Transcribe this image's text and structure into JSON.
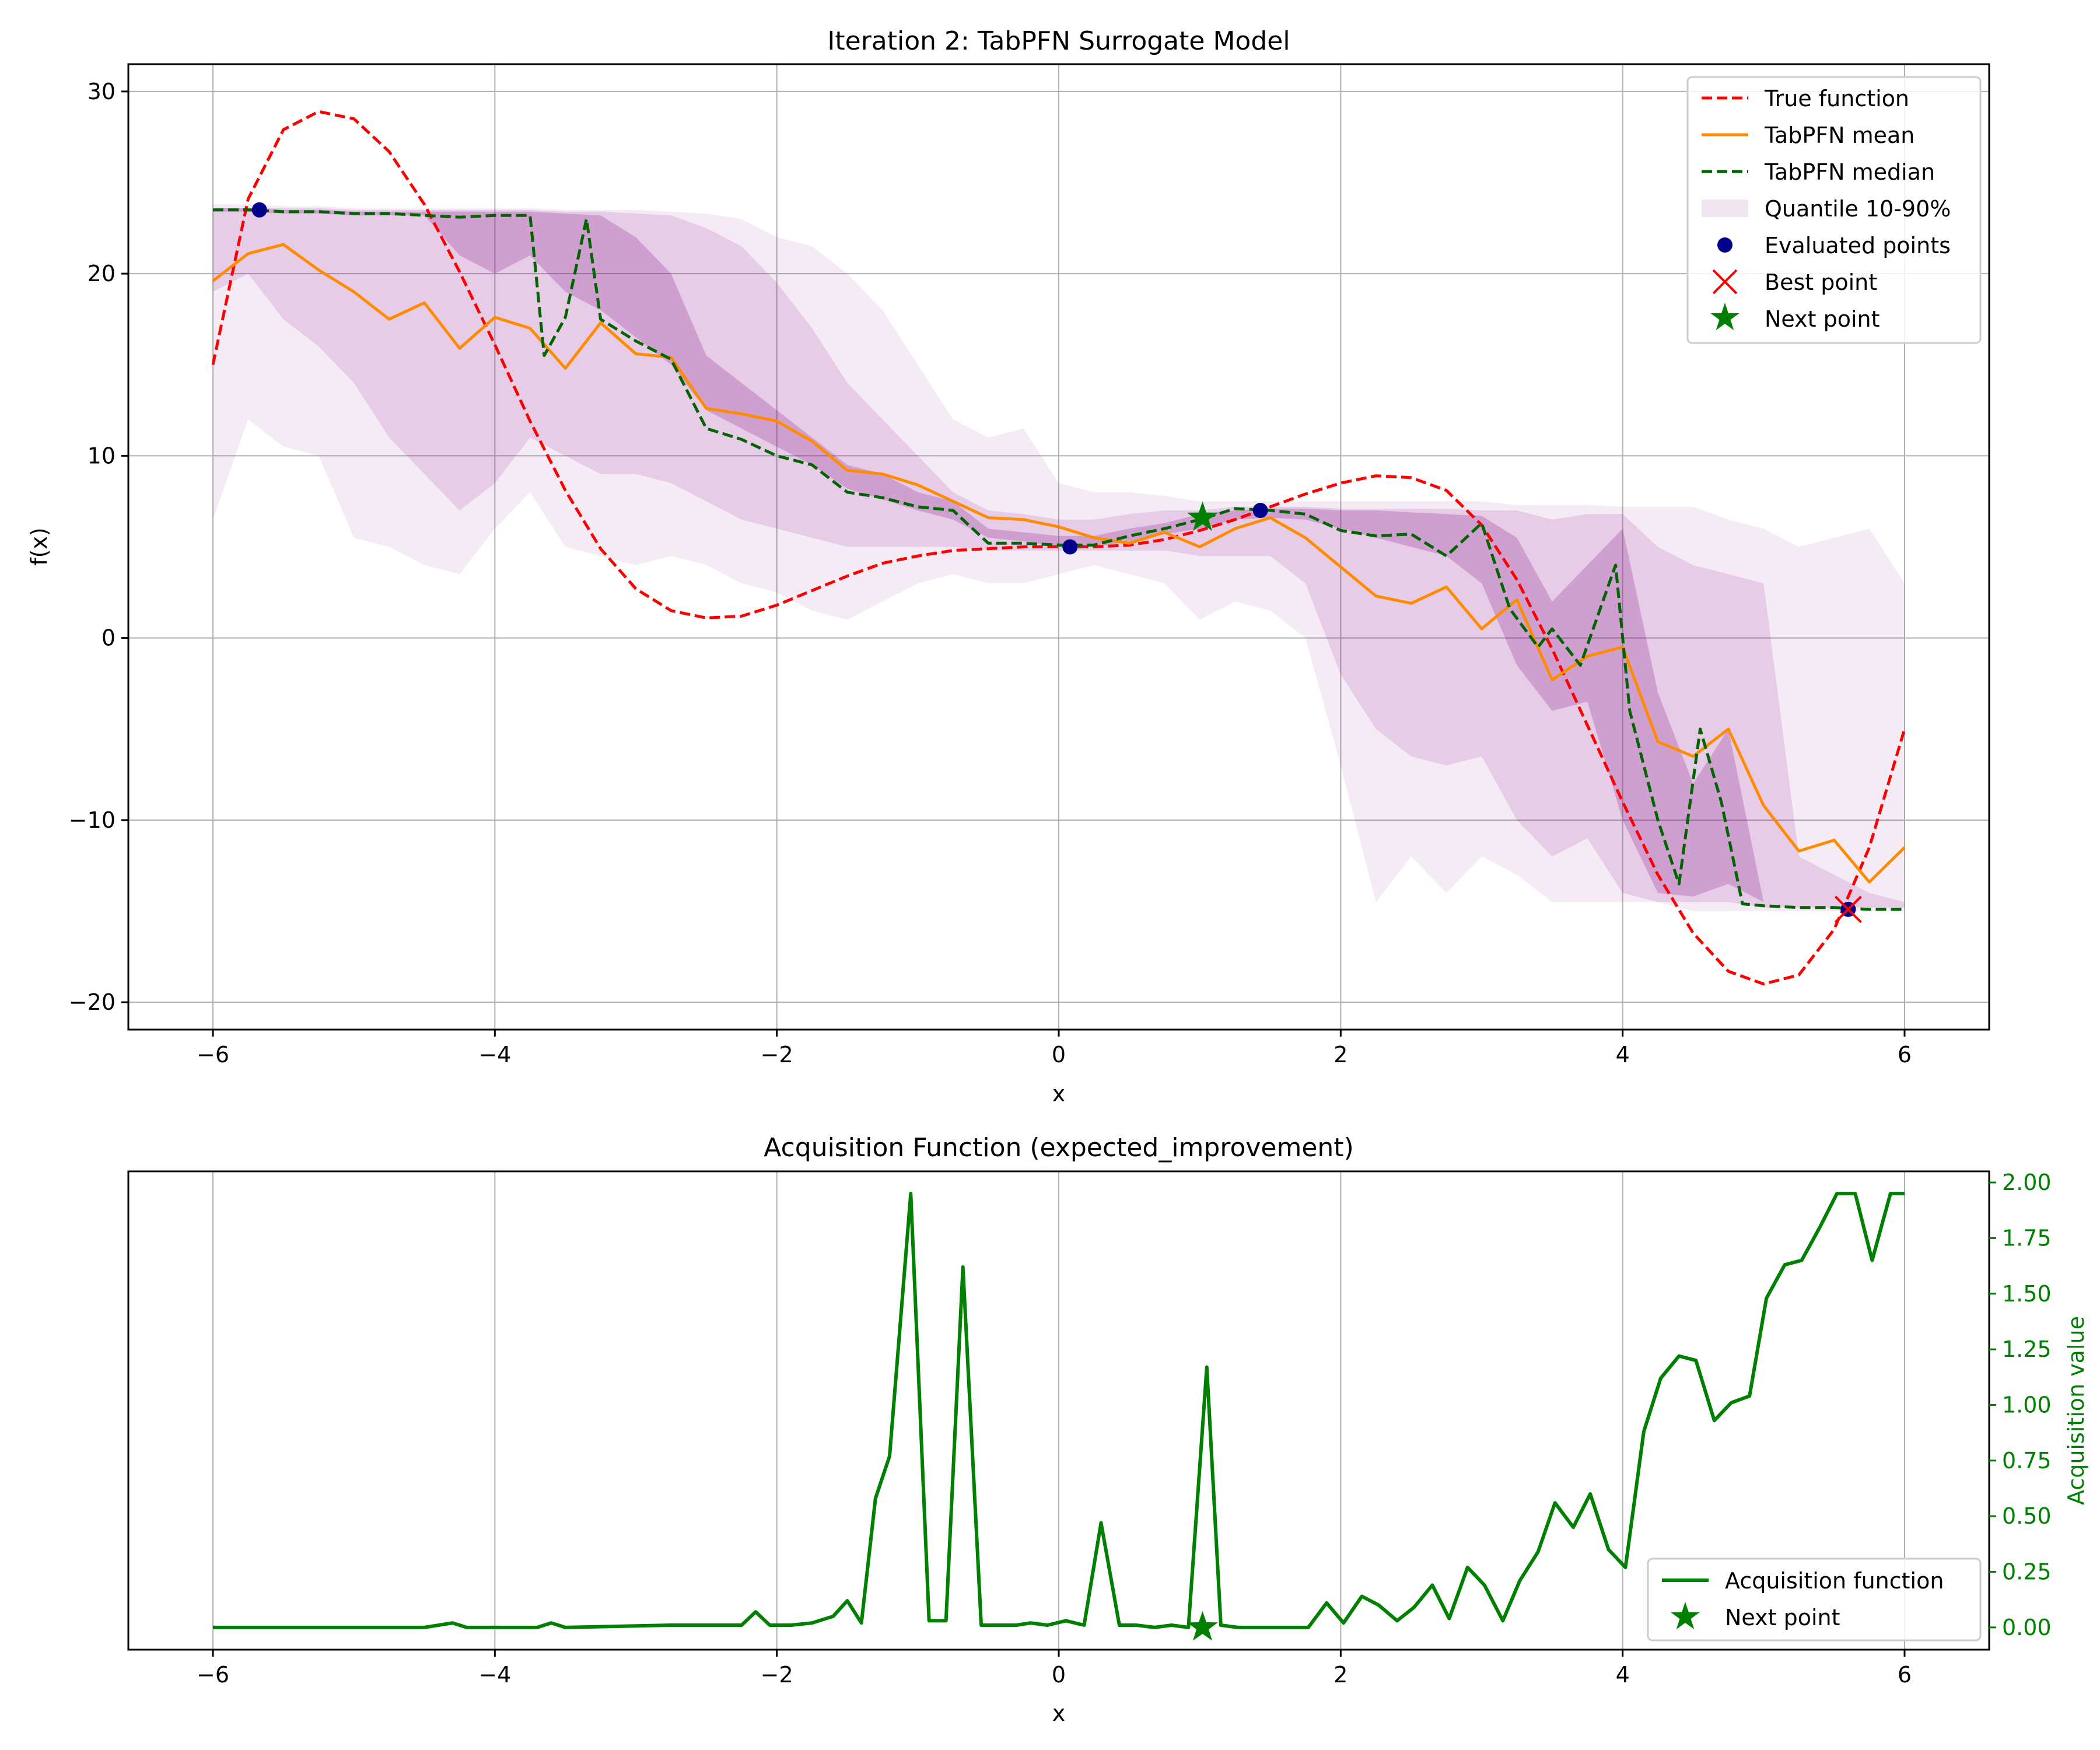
{
  "chart_data": [
    {
      "type": "line",
      "title": "Iteration 2: TabPFN Surrogate Model",
      "xlabel": "x",
      "ylabel": "f(x)",
      "xlim": [
        -6.6,
        6.6
      ],
      "ylim": [
        -21.5,
        31.5
      ],
      "xticks": [
        -6,
        -4,
        -2,
        0,
        2,
        4,
        6
      ],
      "yticks": [
        -20,
        -10,
        0,
        10,
        20,
        30
      ],
      "grid": true,
      "legend_position": "top-right",
      "legend": [
        "True function",
        "TabPFN mean",
        "TabPFN median",
        "Quantile 10-90%",
        "Evaluated points",
        "Best point",
        "Next point"
      ],
      "colors": {
        "true_function": "#ff0000",
        "mean": "#ff8c00",
        "median": "#006400",
        "quantile": "#800080",
        "evaluated": "#00008b",
        "best": "#ff0000",
        "next": "#008000"
      },
      "series": [
        {
          "name": "True function",
          "style": "dashed",
          "x": [
            -6.0,
            -5.75,
            -5.5,
            -5.25,
            -5.0,
            -4.75,
            -4.5,
            -4.25,
            -4.0,
            -3.75,
            -3.5,
            -3.25,
            -3.0,
            -2.75,
            -2.5,
            -2.25,
            -2.0,
            -1.75,
            -1.5,
            -1.25,
            -1.0,
            -0.75,
            -0.5,
            -0.25,
            0.0,
            0.25,
            0.5,
            0.75,
            1.0,
            1.25,
            1.5,
            1.75,
            2.0,
            2.25,
            2.5,
            2.75,
            3.0,
            3.25,
            3.5,
            3.75,
            4.0,
            4.25,
            4.5,
            4.75,
            5.0,
            5.25,
            5.5,
            5.75,
            6.0
          ],
          "values": [
            15.0,
            24.1,
            27.9,
            28.9,
            28.5,
            26.7,
            23.8,
            20.1,
            16.1,
            11.9,
            8.1,
            4.9,
            2.7,
            1.5,
            1.1,
            1.2,
            1.8,
            2.6,
            3.4,
            4.1,
            4.5,
            4.8,
            4.9,
            5.0,
            5.0,
            5.0,
            5.1,
            5.4,
            5.9,
            6.5,
            7.2,
            7.9,
            8.5,
            8.9,
            8.8,
            8.1,
            6.2,
            3.2,
            -0.6,
            -4.8,
            -9.0,
            -13.0,
            -16.2,
            -18.3,
            -19.0,
            -18.5,
            -16.0,
            -11.5,
            -5.0
          ]
        },
        {
          "name": "TabPFN mean",
          "style": "solid",
          "x": [
            -6.0,
            -5.75,
            -5.5,
            -5.25,
            -5.0,
            -4.75,
            -4.5,
            -4.25,
            -4.0,
            -3.75,
            -3.5,
            -3.25,
            -3.0,
            -2.75,
            -2.5,
            -2.25,
            -2.0,
            -1.75,
            -1.5,
            -1.25,
            -1.0,
            -0.75,
            -0.5,
            -0.25,
            0.0,
            0.25,
            0.5,
            0.75,
            1.0,
            1.25,
            1.5,
            1.75,
            2.0,
            2.25,
            2.5,
            2.75,
            3.0,
            3.25,
            3.5,
            3.75,
            4.0,
            4.25,
            4.5,
            4.75,
            5.0,
            5.25,
            5.5,
            5.75,
            6.0
          ],
          "values": [
            19.6,
            21.1,
            21.6,
            20.2,
            19.0,
            17.5,
            18.4,
            15.9,
            17.6,
            17.0,
            14.8,
            17.3,
            15.6,
            15.4,
            12.6,
            12.3,
            11.9,
            10.8,
            9.2,
            9.0,
            8.4,
            7.5,
            6.6,
            6.5,
            6.1,
            5.5,
            5.2,
            5.8,
            5.0,
            6.0,
            6.6,
            5.5,
            3.9,
            2.3,
            1.9,
            2.8,
            0.5,
            2.1,
            -2.3,
            -1.0,
            -0.5,
            -5.7,
            -6.5,
            -5.0,
            -9.2,
            -11.7,
            -11.1,
            -13.4,
            -11.5
          ]
        },
        {
          "name": "TabPFN median",
          "style": "dashed",
          "x": [
            -6.0,
            -5.75,
            -5.5,
            -5.25,
            -5.0,
            -4.75,
            -4.5,
            -4.25,
            -4.0,
            -3.75,
            -3.65,
            -3.5,
            -3.35,
            -3.25,
            -3.0,
            -2.75,
            -2.5,
            -2.25,
            -2.0,
            -1.75,
            -1.5,
            -1.25,
            -1.0,
            -0.75,
            -0.5,
            -0.25,
            0.0,
            0.25,
            0.5,
            0.75,
            1.0,
            1.25,
            1.5,
            1.75,
            2.0,
            2.25,
            2.5,
            2.75,
            3.0,
            3.2,
            3.4,
            3.5,
            3.7,
            3.85,
            3.95,
            4.05,
            4.25,
            4.4,
            4.55,
            4.7,
            4.85,
            5.0,
            5.25,
            5.5,
            5.75,
            6.0
          ],
          "values": [
            23.5,
            23.5,
            23.4,
            23.4,
            23.3,
            23.3,
            23.2,
            23.1,
            23.2,
            23.2,
            15.5,
            17.6,
            23.0,
            17.5,
            16.3,
            15.3,
            11.5,
            10.9,
            10.0,
            9.5,
            8.0,
            7.7,
            7.2,
            7.0,
            5.2,
            5.2,
            5.1,
            5.1,
            5.6,
            6.0,
            6.5,
            7.1,
            7.0,
            6.8,
            5.9,
            5.6,
            5.7,
            4.5,
            6.3,
            1.6,
            -0.5,
            0.5,
            -1.5,
            1.8,
            4.0,
            -4.0,
            -10.0,
            -13.5,
            -5.0,
            -9.0,
            -14.6,
            -14.7,
            -14.8,
            -14.8,
            -14.9,
            -14.9
          ]
        }
      ],
      "quantile_band": {
        "name": "Quantile 10-90%",
        "x": [
          -6.0,
          -5.75,
          -5.5,
          -5.25,
          -5.0,
          -4.75,
          -4.5,
          -4.25,
          -4.0,
          -3.75,
          -3.5,
          -3.25,
          -3.0,
          -2.75,
          -2.5,
          -2.25,
          -2.0,
          -1.75,
          -1.5,
          -1.25,
          -1.0,
          -0.75,
          -0.5,
          -0.25,
          0.0,
          0.25,
          0.5,
          0.75,
          1.0,
          1.25,
          1.5,
          1.75,
          2.0,
          2.25,
          2.5,
          2.75,
          3.0,
          3.25,
          3.5,
          3.75,
          4.0,
          4.25,
          4.5,
          4.75,
          5.0,
          5.25,
          5.5,
          5.75,
          6.0
        ],
        "q10": [
          6.5,
          12.0,
          10.5,
          10.0,
          5.5,
          5.0,
          4.0,
          3.5,
          6.0,
          8.0,
          5.0,
          4.5,
          4.0,
          4.5,
          4.0,
          3.0,
          2.5,
          1.5,
          1.0,
          2.0,
          3.0,
          3.5,
          3.0,
          3.0,
          3.5,
          4.0,
          3.5,
          3.0,
          1.0,
          2.0,
          1.5,
          0.0,
          -7.0,
          -14.5,
          -12.0,
          -14.0,
          -12.0,
          -13.0,
          -14.5,
          -14.5,
          -14.5,
          -14.5,
          -15.0,
          -15.0,
          -15.0,
          -15.0,
          -15.0,
          -15.0,
          -15.0
        ],
        "q90": [
          23.8,
          23.8,
          23.7,
          23.7,
          23.6,
          23.6,
          23.6,
          23.6,
          23.6,
          23.6,
          23.5,
          23.5,
          23.5,
          23.4,
          23.3,
          23.0,
          22.0,
          21.5,
          20.0,
          18.0,
          15.0,
          12.0,
          11.0,
          11.5,
          8.5,
          8.0,
          8.0,
          7.8,
          7.5,
          7.5,
          7.5,
          7.5,
          7.5,
          7.5,
          7.5,
          7.5,
          7.5,
          7.3,
          7.3,
          7.3,
          7.2,
          7.2,
          7.2,
          6.5,
          6.0,
          5.0,
          5.5,
          6.0,
          3.0
        ],
        "q25": [
          19.0,
          20.0,
          17.5,
          16.0,
          14.0,
          11.0,
          9.0,
          7.0,
          8.5,
          11.0,
          10.0,
          9.0,
          9.0,
          8.5,
          7.5,
          6.5,
          6.0,
          5.5,
          5.0,
          5.0,
          5.0,
          5.0,
          4.8,
          4.8,
          4.8,
          4.8,
          4.8,
          4.8,
          4.5,
          4.5,
          4.5,
          3.0,
          -2.0,
          -5.0,
          -6.5,
          -7.0,
          -6.5,
          -10.0,
          -12.0,
          -11.0,
          -14.0,
          -14.5,
          -14.5,
          -14.5,
          -14.8,
          -14.8,
          -14.8,
          -14.8,
          -14.8
        ],
        "q75": [
          23.6,
          23.6,
          23.6,
          23.6,
          23.5,
          23.5,
          23.5,
          23.5,
          23.5,
          23.5,
          23.4,
          23.4,
          23.3,
          23.2,
          22.5,
          21.5,
          19.5,
          17.0,
          14.0,
          12.0,
          10.0,
          8.0,
          7.0,
          6.8,
          6.5,
          6.5,
          6.8,
          7.0,
          7.0,
          7.2,
          7.2,
          7.2,
          7.1,
          7.1,
          7.1,
          7.1,
          7.0,
          7.0,
          6.5,
          6.8,
          6.8,
          5.0,
          4.0,
          3.5,
          3.0,
          -12.0,
          -13.0,
          -14.0,
          -14.5
        ],
        "q40": [
          23.4,
          23.4,
          23.3,
          23.3,
          23.2,
          23.2,
          23.2,
          21.0,
          20.0,
          21.0,
          19.0,
          18.0,
          16.5,
          15.0,
          12.5,
          11.5,
          10.5,
          9.5,
          8.2,
          7.6,
          7.0,
          6.5,
          5.5,
          5.3,
          5.0,
          5.0,
          5.3,
          5.7,
          6.0,
          6.5,
          6.6,
          6.5,
          6.0,
          5.5,
          5.0,
          4.5,
          3.0,
          -1.5,
          -4.0,
          -3.5,
          -10.0,
          -14.0,
          -14.2,
          -13.5,
          -14.5,
          -14.7,
          -14.7,
          -14.8,
          -14.8
        ],
        "q60": [
          23.6,
          23.6,
          23.5,
          23.5,
          23.4,
          23.4,
          23.4,
          23.4,
          23.4,
          23.4,
          23.3,
          23.2,
          22.0,
          20.0,
          15.5,
          14.0,
          12.5,
          11.0,
          9.5,
          9.0,
          8.0,
          7.5,
          6.0,
          5.8,
          5.6,
          5.6,
          6.0,
          6.3,
          6.8,
          7.0,
          7.1,
          7.1,
          7.0,
          7.0,
          6.9,
          6.8,
          6.7,
          5.5,
          2.0,
          4.0,
          6.0,
          -3.0,
          -8.0,
          -5.0,
          -14.5,
          -14.7,
          -14.7,
          -14.8,
          -14.8
        ]
      },
      "evaluated_points": [
        {
          "x": -5.67,
          "y": 23.5
        },
        {
          "x": 0.08,
          "y": 5.0
        },
        {
          "x": 1.43,
          "y": 7.0
        },
        {
          "x": 5.6,
          "y": -14.9
        }
      ],
      "best_point": {
        "x": 5.6,
        "y": -14.9
      },
      "next_point": {
        "x": 1.02,
        "y": 6.6
      }
    },
    {
      "type": "line",
      "title": "Acquisition Function (expected_improvement)",
      "xlabel": "x",
      "ylabel": "Acquisition value",
      "xlim": [
        -6.6,
        6.6
      ],
      "ylim": [
        -0.1,
        2.05
      ],
      "xticks": [
        -6,
        -4,
        -2,
        0,
        2,
        4,
        6
      ],
      "yticks": [
        "0.00",
        "0.25",
        "0.50",
        "0.75",
        "1.00",
        "1.25",
        "1.50",
        "1.75",
        "2.00"
      ],
      "y_axis_side": "right",
      "grid": true,
      "legend_position": "bottom-right",
      "legend": [
        "Acquisition function",
        "Next point"
      ],
      "colors": {
        "line": "#008000"
      },
      "series": [
        {
          "name": "Acquisition function",
          "x": [
            -6.0,
            -5.0,
            -4.5,
            -4.3,
            -4.2,
            -3.7,
            -3.6,
            -3.5,
            -2.75,
            -2.6,
            -2.25,
            -2.15,
            -2.05,
            -1.9,
            -1.75,
            -1.6,
            -1.5,
            -1.4,
            -1.3,
            -1.2,
            -1.05,
            -0.92,
            -0.8,
            -0.68,
            -0.55,
            -0.43,
            -0.3,
            -0.2,
            -0.08,
            0.05,
            0.18,
            0.3,
            0.43,
            0.55,
            0.68,
            0.8,
            0.92,
            1.05,
            1.15,
            1.27,
            1.4,
            1.52,
            1.65,
            1.77,
            1.9,
            2.02,
            2.15,
            2.27,
            2.4,
            2.52,
            2.65,
            2.77,
            2.9,
            3.02,
            3.15,
            3.27,
            3.4,
            3.52,
            3.65,
            3.77,
            3.9,
            4.02,
            4.15,
            4.27,
            4.4,
            4.52,
            4.65,
            4.77,
            4.9,
            5.02,
            5.15,
            5.27,
            5.4,
            5.52,
            5.65,
            5.77,
            5.9,
            6.0
          ],
          "values": [
            0.0,
            0.0,
            0.0,
            0.02,
            0.0,
            0.0,
            0.02,
            0.0,
            0.01,
            0.01,
            0.01,
            0.07,
            0.01,
            0.01,
            0.02,
            0.05,
            0.12,
            0.02,
            0.58,
            0.77,
            1.95,
            0.03,
            0.03,
            1.62,
            0.01,
            0.01,
            0.01,
            0.02,
            0.01,
            0.03,
            0.01,
            0.47,
            0.01,
            0.01,
            0.0,
            0.01,
            0.0,
            1.17,
            0.01,
            0.0,
            0.0,
            0.0,
            0.0,
            0.0,
            0.11,
            0.02,
            0.14,
            0.1,
            0.03,
            0.09,
            0.19,
            0.04,
            0.27,
            0.19,
            0.03,
            0.21,
            0.34,
            0.56,
            0.45,
            0.6,
            0.35,
            0.27,
            0.88,
            1.12,
            1.22,
            1.2,
            0.93,
            1.01,
            1.04,
            1.48,
            1.63,
            1.65,
            1.8,
            1.95,
            1.95,
            1.65,
            1.95,
            1.95
          ]
        }
      ],
      "next_point": {
        "x": 1.02,
        "y": 0.0
      }
    }
  ]
}
